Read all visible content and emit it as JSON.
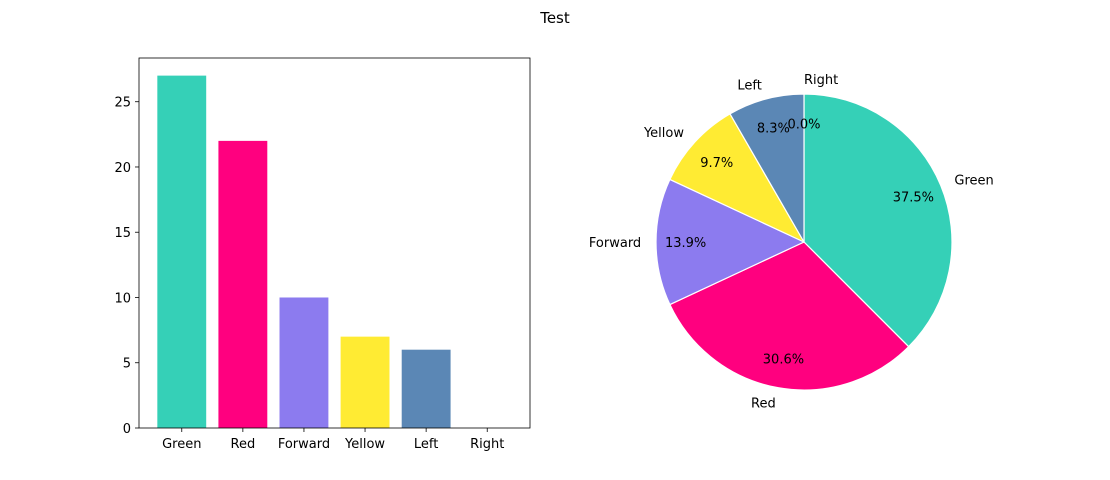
{
  "figure": {
    "title": "Test"
  },
  "chart_data": [
    {
      "type": "bar",
      "title": "",
      "xlabel": "",
      "ylabel": "",
      "categories": [
        "Green",
        "Red",
        "Forward",
        "Yellow",
        "Left",
        "Right"
      ],
      "values": [
        27,
        22,
        10,
        7,
        6,
        0
      ],
      "colors": [
        "#35d0b7",
        "#ff007f",
        "#8c7bef",
        "#ffeb33",
        "#5b87b5",
        "#35d0b7"
      ],
      "ylim": [
        0,
        28.35
      ],
      "yticks": [
        0,
        5,
        10,
        15,
        20,
        25
      ],
      "ytick_labels": [
        "0",
        "5",
        "10",
        "15",
        "20",
        "25"
      ],
      "grid": false
    },
    {
      "type": "pie",
      "title": "",
      "labels": [
        "Green",
        "Red",
        "Forward",
        "Yellow",
        "Left",
        "Right"
      ],
      "values": [
        27,
        22,
        10,
        7,
        6,
        0
      ],
      "percent_labels": [
        "37.5%",
        "30.6%",
        "13.9%",
        "9.7%",
        "8.3%",
        "0.0%"
      ],
      "colors": [
        "#35d0b7",
        "#ff007f",
        "#8c7bef",
        "#ffeb33",
        "#5b87b5",
        "#35d0b7"
      ],
      "start_angle": 90,
      "direction": "clockwise"
    }
  ]
}
